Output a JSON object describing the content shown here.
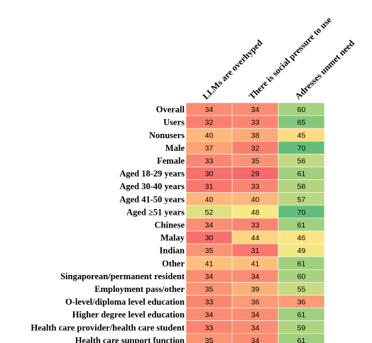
{
  "chart_data": {
    "type": "heatmap",
    "title": "",
    "columns": [
      "LLMs are overhyped",
      "There is social pressure to use",
      "Adresses unmet need"
    ],
    "rows": [
      "Overall",
      "Users",
      "Nonusers",
      "Male",
      "Female",
      "Aged 18-29 years",
      "Aged 30-40 years",
      "Aged 41-50 years",
      "Aged ≥51 years",
      "Chinese",
      "Malay",
      "Indian",
      "Other",
      "Singaporean/permanent resident",
      "Employment pass/other",
      "O-level/diploma level education",
      "Higher degree level education",
      "Health care provider/health care student",
      "Health care support function"
    ],
    "values": [
      [
        34,
        34,
        60
      ],
      [
        32,
        33,
        65
      ],
      [
        40,
        38,
        45
      ],
      [
        37,
        32,
        70
      ],
      [
        33,
        35,
        56
      ],
      [
        30,
        29,
        61
      ],
      [
        31,
        33,
        58
      ],
      [
        40,
        40,
        57
      ],
      [
        52,
        48,
        70
      ],
      [
        34,
        33,
        61
      ],
      [
        30,
        44,
        46
      ],
      [
        35,
        31,
        49
      ],
      [
        41,
        41,
        61
      ],
      [
        34,
        34,
        60
      ],
      [
        35,
        39,
        55
      ],
      [
        33,
        36,
        36
      ],
      [
        34,
        34,
        61
      ],
      [
        33,
        34,
        59
      ],
      [
        35,
        34,
        61
      ]
    ],
    "color_scale": {
      "low": "#f8696b",
      "mid": "#ffeb84",
      "high": "#63be7b",
      "min": 29,
      "mid_value": 47,
      "max": 70
    }
  }
}
